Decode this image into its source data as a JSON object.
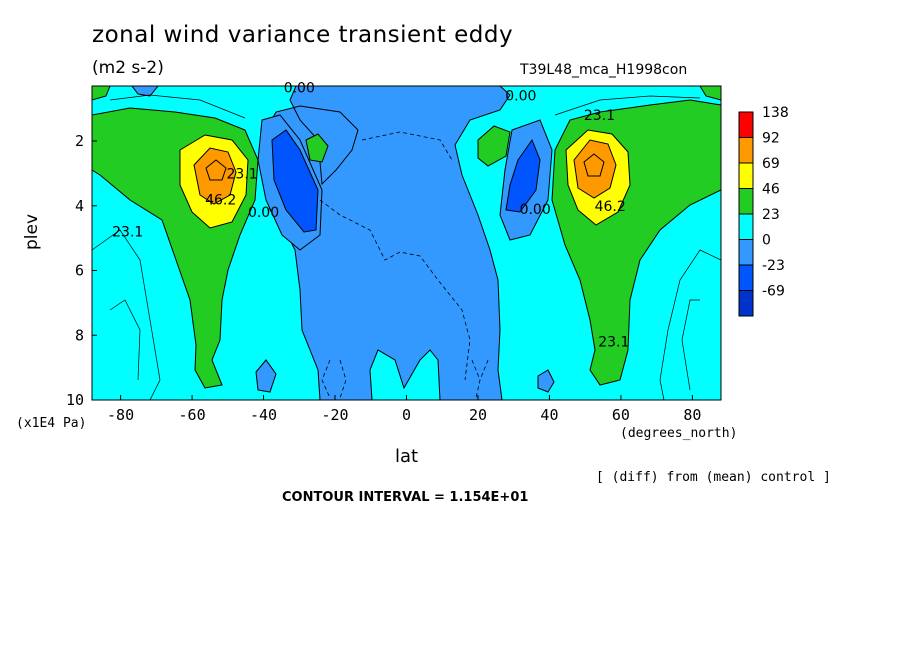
{
  "chart_data": {
    "type": "contour",
    "title": "zonal wind variance transient eddy",
    "units": "(m2 s-2)",
    "run_label": "T39L48_mca_H1998con",
    "xlabel": "lat",
    "x_units": "(degrees_north)",
    "ylabel": "plev",
    "y_units": "(x1E4 Pa)",
    "xlim": [
      -88,
      88
    ],
    "ylim": [
      10,
      0.3
    ],
    "x_ticks": [
      -80,
      -60,
      -40,
      -20,
      0,
      20,
      40,
      60,
      80
    ],
    "y_ticks": [
      2,
      4,
      6,
      8,
      10
    ],
    "colorbar": {
      "labels": [
        "138",
        "92",
        "69",
        "46",
        "23",
        "0",
        "-23",
        "-69"
      ],
      "colors": [
        "#ff0000",
        "#ff9900",
        "#ffff00",
        "#22cc22",
        "#00ffff",
        "#3399ff",
        "#0055ff",
        "#0033cc"
      ]
    },
    "contour_labels": [
      {
        "text": "0.00",
        "lat": -30,
        "plev": 0.35
      },
      {
        "text": "0.00",
        "lat": 32,
        "plev": 0.6
      },
      {
        "text": "23.1",
        "lat": 54,
        "plev": 1.2
      },
      {
        "text": "23.1",
        "lat": -46,
        "plev": 3.0
      },
      {
        "text": "46.2",
        "lat": -52,
        "plev": 3.8
      },
      {
        "text": "46.2",
        "lat": 57,
        "plev": 4.0
      },
      {
        "text": "0.00",
        "lat": -40,
        "plev": 4.2
      },
      {
        "text": "0.00",
        "lat": 36,
        "plev": 4.1
      },
      {
        "text": "23.1",
        "lat": -78,
        "plev": 4.8
      },
      {
        "text": "23.1",
        "lat": 58,
        "plev": 8.2
      }
    ],
    "contour_interval_text": "CONTOUR INTERVAL = 1.154E+01",
    "note": "[ (diff) from (mean) control ]"
  }
}
